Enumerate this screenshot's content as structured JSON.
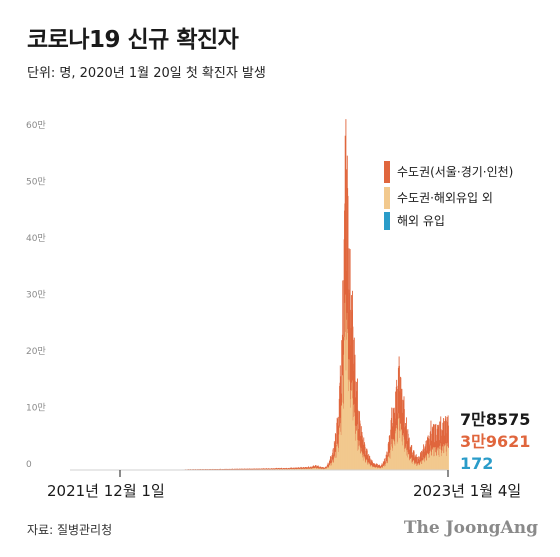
{
  "header": {
    "title": "코로나19 신규 확진자",
    "subtitle": "단위: 명, 2020년 1월 20일 첫 확진자 발생"
  },
  "footer": {
    "source": "자료: 질병관리청",
    "brand": "The JoongAng"
  },
  "colors": {
    "capital": "#e0663d",
    "non_capital": "#f2c98e",
    "overseas": "#2a9cc9",
    "total_text": "#1a1a1a"
  },
  "chart_data": {
    "type": "bar",
    "stacked": true,
    "title": "코로나19 신규 확진자",
    "subtitle": "단위: 명, 2020년 1월 20일 첫 확진자 발생",
    "ylim": [
      0,
      600000
    ],
    "y_ticks": [
      0,
      100000,
      200000,
      300000,
      400000,
      500000,
      600000
    ],
    "y_tick_labels": [
      "0",
      "10만",
      "20만",
      "30만",
      "40만",
      "50만",
      "60만"
    ],
    "grid": false,
    "legend_position": "top-right",
    "x_labels": [
      "2021년 12월 1일",
      "2023년 1월 4일"
    ],
    "series": [
      {
        "name": "수도권(서울·경기·인천)",
        "color": "#e0663d"
      },
      {
        "name": "수도권·해외유입 외",
        "color": "#f2c98e"
      },
      {
        "name": "해외 유입",
        "color": "#2a9cc9"
      }
    ],
    "keypoints": [
      {
        "date": "2020-01-20",
        "total": 0
      },
      {
        "date": "2020-12-25",
        "total": 1200
      },
      {
        "date": "2021-09-25",
        "total": 3200
      },
      {
        "date": "2021-12-01",
        "total": 5000
      },
      {
        "date": "2021-12-20",
        "total": 7500
      },
      {
        "date": "2022-01-15",
        "total": 4000
      },
      {
        "date": "2022-01-31",
        "total": 18000
      },
      {
        "date": "2022-02-15",
        "total": 57000
      },
      {
        "date": "2022-02-28",
        "total": 140000
      },
      {
        "date": "2022-03-08",
        "total": 300000
      },
      {
        "date": "2022-03-17",
        "total": 621000
      },
      {
        "date": "2022-03-25",
        "total": 380000
      },
      {
        "date": "2022-04-05",
        "total": 280000
      },
      {
        "date": "2022-04-20",
        "total": 120000
      },
      {
        "date": "2022-05-10",
        "total": 45000
      },
      {
        "date": "2022-06-05",
        "total": 12000
      },
      {
        "date": "2022-06-25",
        "total": 8000
      },
      {
        "date": "2022-07-10",
        "total": 25000
      },
      {
        "date": "2022-07-25",
        "total": 85000
      },
      {
        "date": "2022-08-17",
        "total": 180000
      },
      {
        "date": "2022-09-01",
        "total": 100000
      },
      {
        "date": "2022-09-20",
        "total": 40000
      },
      {
        "date": "2022-10-08",
        "total": 20000
      },
      {
        "date": "2022-10-25",
        "total": 40000
      },
      {
        "date": "2022-11-15",
        "total": 70000
      },
      {
        "date": "2022-12-10",
        "total": 75000
      },
      {
        "date": "2022-12-27",
        "total": 85000
      },
      {
        "date": "2023-01-04",
        "total": 78575
      }
    ],
    "capital_share": 0.5,
    "final_day": {
      "date": "2023-01-04",
      "total": 78575,
      "non_capital": 39621,
      "overseas": 172
    },
    "annotations": {
      "total": "7만8575",
      "non_capital": "3만9621",
      "overseas": "172"
    }
  }
}
